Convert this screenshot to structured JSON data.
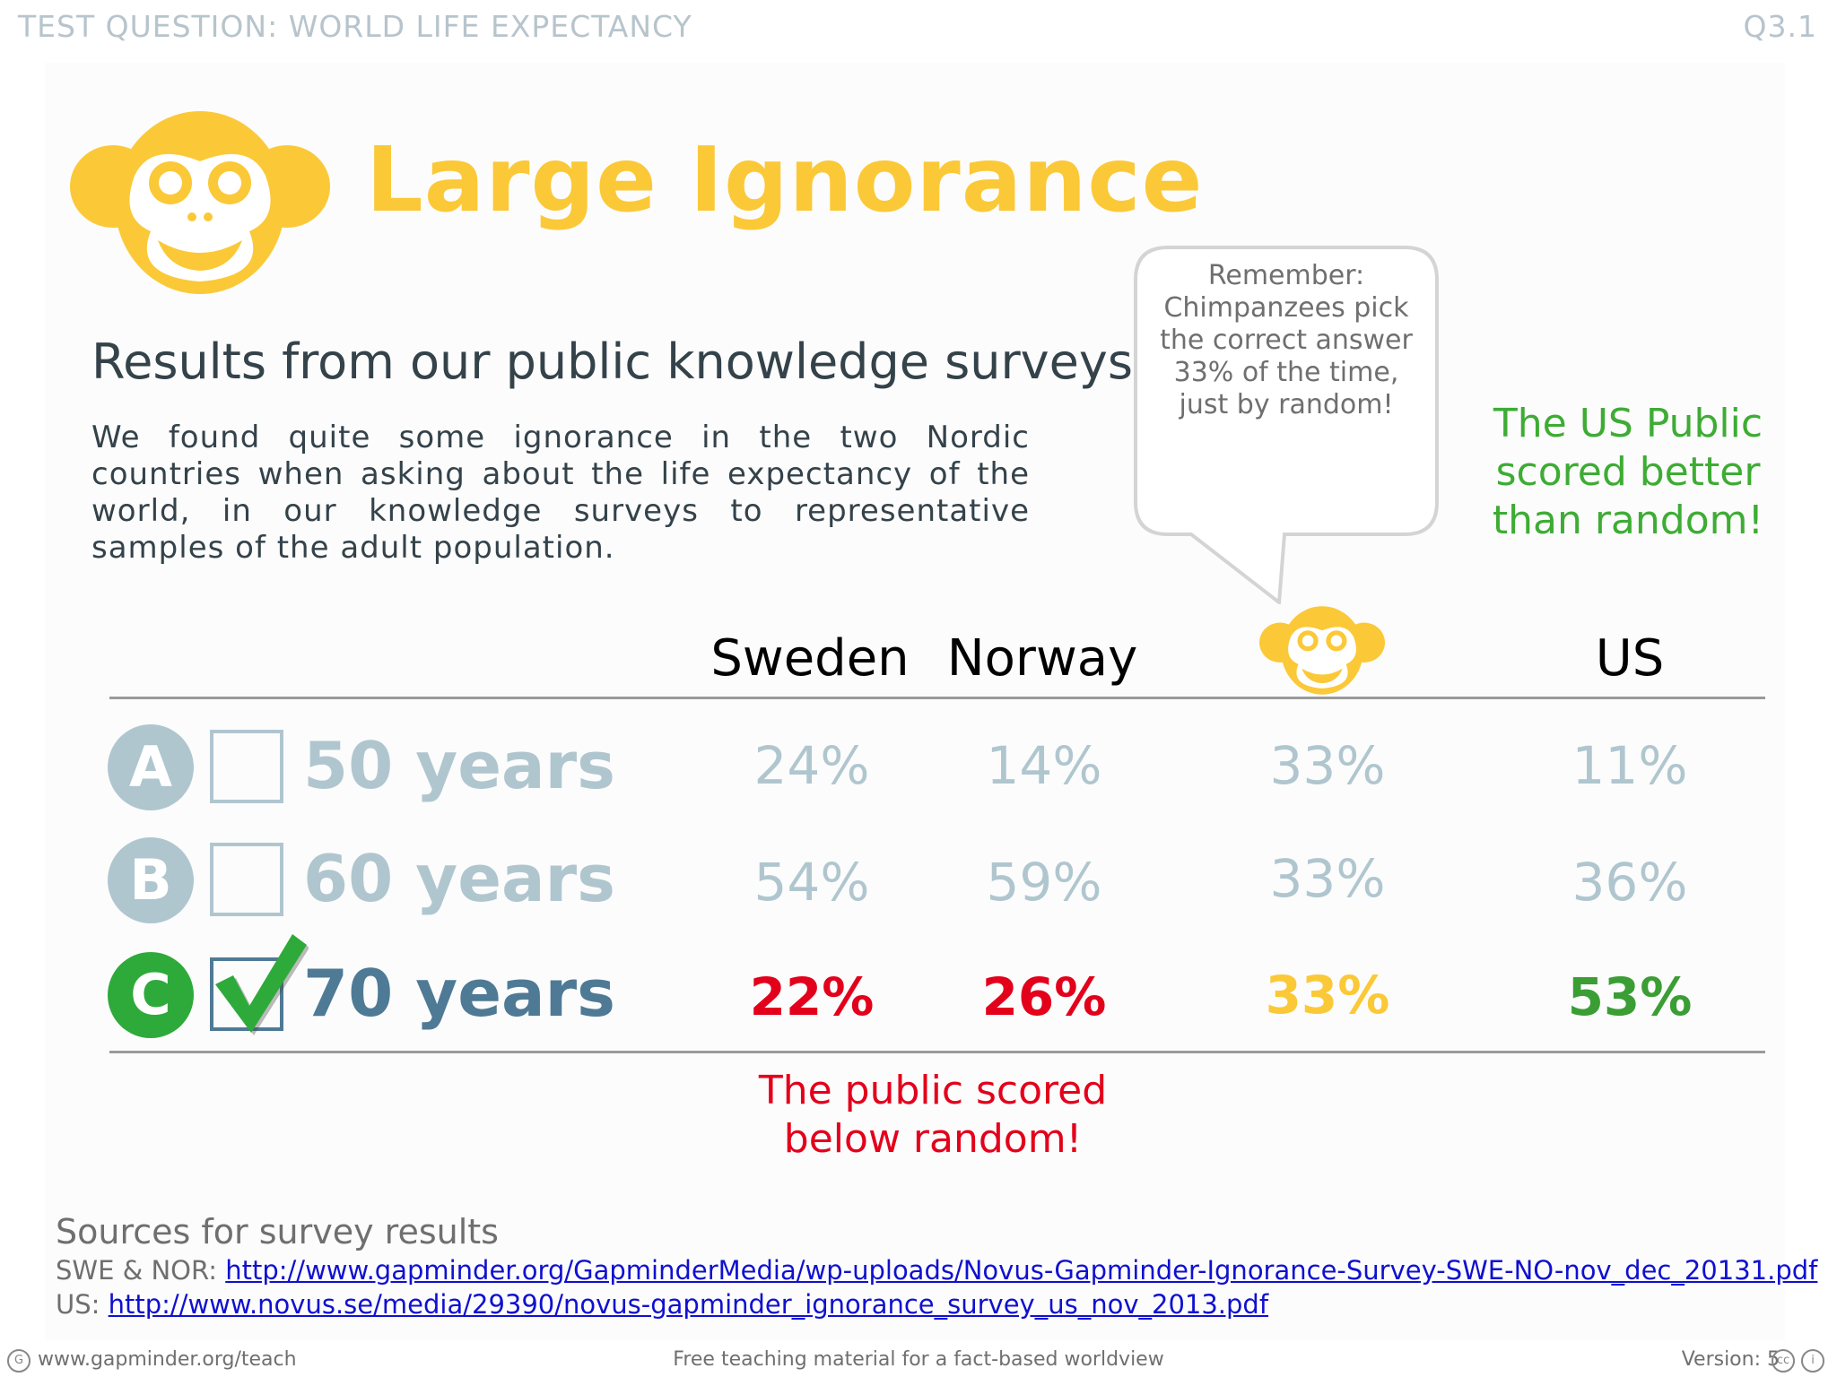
{
  "header": {
    "left": "TEST QUESTION: WORLD LIFE EXPECTANCY",
    "right": "Q3.1"
  },
  "title": "Large Ignorance",
  "subtitle": "Results from our public knowledge surveys",
  "intro": "We found quite some ignorance in the two Nordic countries when asking about the life expectancy of the world, in our knowledge surveys to representative samples of the adult population.",
  "bubble": "Remember: Chimpanzees pick the correct answer 33% of the time, just by random!",
  "us_note": "The US Public scored better than random!",
  "columns": {
    "sweden": "Sweden",
    "norway": "Norway",
    "us": "US"
  },
  "rows": [
    {
      "letter": "A",
      "answer": "50 years",
      "sweden": "24%",
      "norway": "14%",
      "chimp": "33%",
      "us": "11%",
      "correct": false
    },
    {
      "letter": "B",
      "answer": "60 years",
      "sweden": "54%",
      "norway": "59%",
      "chimp": "33%",
      "us": "36%",
      "correct": false
    },
    {
      "letter": "C",
      "answer": "70 years",
      "sweden": "22%",
      "norway": "26%",
      "chimp": "33%",
      "us": "53%",
      "correct": true
    }
  ],
  "below_note": "The public scored below random!",
  "sources": {
    "title": "Sources for survey results",
    "swe_nor_label": "SWE & NOR:",
    "swe_nor_url": "http://www.gapminder.org/GapminderMedia/wp-uploads/Novus-Gapminder-Ignorance-Survey-SWE-NO-nov_dec_20131.pdf",
    "us_label": "US:",
    "us_url": "http://www.novus.se/media/29390/novus-gapminder_ignorance_survey_us_nov_2013.pdf"
  },
  "footer": {
    "left": "www.gapminder.org/teach",
    "center": "Free teaching material for a fact-based worldview",
    "right": "Version: 5"
  },
  "colors": {
    "brand_yellow": "#fbc937",
    "grey_option": "#b0c6cf",
    "correct_green": "#2eaa3a",
    "below_red": "#e3001b",
    "text_dark": "#34424a"
  },
  "icons": [
    "monkey-logo",
    "checkmark-icon",
    "creative-commons-icon",
    "gapminder-icon"
  ]
}
